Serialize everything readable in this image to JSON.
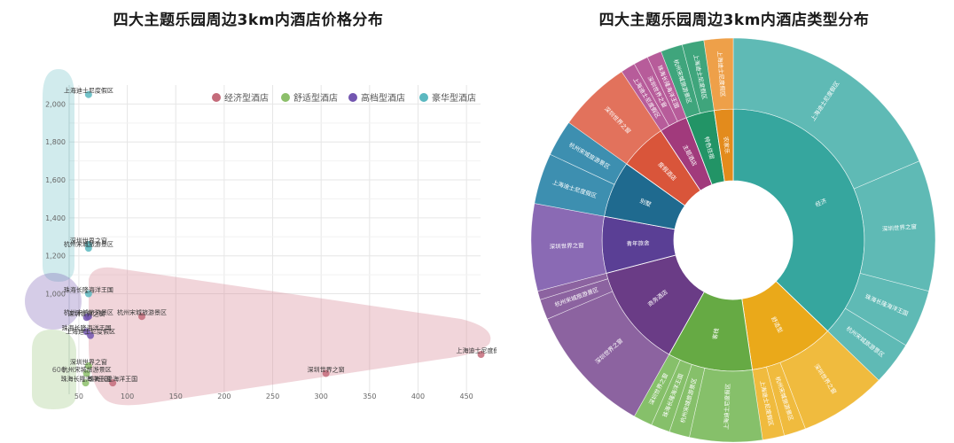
{
  "chart_data": [
    {
      "type": "scatter",
      "title": "四大主题乐园周边3km内酒店价格分布",
      "xlabel": "",
      "ylabel": "",
      "xlim": [
        40,
        470
      ],
      "ylim": [
        400,
        2100
      ],
      "x_ticks": [
        50,
        100,
        150,
        200,
        250,
        300,
        350,
        400,
        450
      ],
      "y_ticks": [
        1000,
        1200,
        1400,
        1600,
        1800,
        2000
      ],
      "y_ticks_visible_labels": [
        "1,000",
        "1,200",
        "1,400",
        "1,600",
        "1,800",
        "2,000"
      ],
      "grid": true,
      "legend_position": "top-right",
      "legend": [
        {
          "name": "经济型酒店",
          "color": "#c46b7a"
        },
        {
          "name": "舒适型酒店",
          "color": "#8cbf6a"
        },
        {
          "name": "高档型酒店",
          "color": "#7356b0"
        },
        {
          "name": "豪华型酒店",
          "color": "#5bb8c0"
        }
      ],
      "series": [
        {
          "name": "豪华型酒店",
          "color": "#5bb8c0",
          "points": [
            {
              "label": "上海迪士尼度假区",
              "x": 60,
              "y": 2050
            },
            {
              "label": "深圳世界之窗",
              "x": 60,
              "y": 1260
            },
            {
              "label": "杭州宋城旅游景区",
              "x": 60,
              "y": 1240
            },
            {
              "label": "珠海长隆海洋王国",
              "x": 60,
              "y": 1000
            }
          ]
        },
        {
          "name": "高档型酒店",
          "color": "#7356b0",
          "points": [
            {
              "label": "杭州宋城旅游景区",
              "x": 60,
              "y": 880
            },
            {
              "label": "深圳世界之窗",
              "x": 58,
              "y": 875
            },
            {
              "label": "珠海长隆海洋王国",
              "x": 58,
              "y": 800
            },
            {
              "label": "上海迪士尼度假区",
              "x": 62,
              "y": 780
            }
          ]
        },
        {
          "name": "舒适型酒店",
          "color": "#8cbf6a",
          "points": [
            {
              "label": "深圳世界之窗",
              "x": 60,
              "y": 620
            },
            {
              "label": "杭州宋城旅游景区",
              "x": 58,
              "y": 580
            },
            {
              "label": "珠海长隆海洋王国",
              "x": 57,
              "y": 530
            }
          ]
        },
        {
          "name": "经济型酒店",
          "color": "#c46b7a",
          "points": [
            {
              "label": "杭州宋城旅游景区",
              "x": 115,
              "y": 880
            },
            {
              "label": "珠海长隆海洋王国",
              "x": 85,
              "y": 530
            },
            {
              "label": "深圳世界之窗",
              "x": 305,
              "y": 580
            },
            {
              "label": "上海迪士尼度假区",
              "x": 465,
              "y": 680
            }
          ]
        }
      ]
    },
    {
      "type": "sunburst",
      "title": "四大主题乐园周边3km内酒店类型分布",
      "inner_ring": [
        {
          "name": "经济",
          "value": 32,
          "color": "#36a69e"
        },
        {
          "name": "舒适型",
          "value": 9,
          "color": "#eaa91a"
        },
        {
          "name": "客栈",
          "value": 9,
          "color": "#66aa44"
        },
        {
          "name": "商务酒店",
          "value": 11,
          "color": "#6a3c86"
        },
        {
          "name": "青年旅舍",
          "value": 6,
          "color": "#5a3f95"
        },
        {
          "name": "别墅",
          "value": 6,
          "color": "#1f6a8f"
        },
        {
          "name": "度假酒店",
          "value": 5,
          "color": "#d9553a"
        },
        {
          "name": "主题酒店",
          "value": 3,
          "color": "#a13a7c"
        },
        {
          "name": "特色住宿",
          "value": 3,
          "color": "#229466"
        },
        {
          "name": "农家乐",
          "value": 2,
          "color": "#e38b1c"
        }
      ],
      "outer_ring": [
        {
          "parent": "经济",
          "name": "上海迪士尼度假区",
          "value": 16,
          "color": "#5fbab5"
        },
        {
          "parent": "经济",
          "name": "深圳世界之窗",
          "value": 9,
          "color": "#5fbab5"
        },
        {
          "parent": "经济",
          "name": "珠海长隆海洋王国",
          "value": 4,
          "color": "#5fbab5"
        },
        {
          "parent": "经济",
          "name": "杭州宋城旅游景区",
          "value": 3,
          "color": "#5fbab5"
        },
        {
          "parent": "舒适型",
          "name": "深圳世界之窗",
          "value": 6,
          "color": "#f0bb3e"
        },
        {
          "parent": "舒适型",
          "name": "杭州宋城旅游景区",
          "value": 1.5,
          "color": "#f0bb3e"
        },
        {
          "parent": "舒适型",
          "name": "上海迪士尼度假区",
          "value": 1.5,
          "color": "#f0bb3e"
        },
        {
          "parent": "客栈",
          "name": "上海迪士尼度假区",
          "value": 5,
          "color": "#86c06a"
        },
        {
          "parent": "客栈",
          "name": "杭州宋城旅游景区",
          "value": 1.4,
          "color": "#86c06a"
        },
        {
          "parent": "客栈",
          "name": "珠海长隆海洋王国",
          "value": 1.3,
          "color": "#86c06a"
        },
        {
          "parent": "客栈",
          "name": "深圳世界之窗",
          "value": 1.3,
          "color": "#86c06a"
        },
        {
          "parent": "商务酒店",
          "name": "深圳世界之窗",
          "value": 9,
          "color": "#8c63a0"
        },
        {
          "parent": "商务酒店",
          "name": "杭州宋城旅游景区",
          "value": 1.4,
          "color": "#8c63a0"
        },
        {
          "parent": "商务酒店",
          "name": "",
          "value": 0.6,
          "color": "#8c63a0"
        },
        {
          "parent": "青年旅舍",
          "name": "深圳世界之窗",
          "value": 6,
          "color": "#8a6ab4"
        },
        {
          "parent": "别墅",
          "name": "上海迪士尼度假区",
          "value": 3.5,
          "color": "#3d8fb0"
        },
        {
          "parent": "别墅",
          "name": "杭州宋城旅游景区",
          "value": 2.5,
          "color": "#3d8fb0"
        },
        {
          "parent": "度假酒店",
          "name": "深圳世界之窗",
          "value": 5,
          "color": "#e2725c"
        },
        {
          "parent": "主题酒店",
          "name": "上海迪士尼度假区",
          "value": 1,
          "color": "#b75c9a"
        },
        {
          "parent": "主题酒店",
          "name": "深圳世界之窗",
          "value": 1,
          "color": "#b75c9a"
        },
        {
          "parent": "主题酒店",
          "name": "珠海长隆海洋王国",
          "value": 1,
          "color": "#b75c9a"
        },
        {
          "parent": "特色住宿",
          "name": "杭州宋城旅游景区",
          "value": 1.5,
          "color": "#3fa57c"
        },
        {
          "parent": "特色住宿",
          "name": "上海迪士尼度假区",
          "value": 1.5,
          "color": "#3fa57c"
        },
        {
          "parent": "农家乐",
          "name": "上海迪士尼度假区",
          "value": 2,
          "color": "#eea049"
        }
      ]
    }
  ],
  "left": {
    "title": "四大主题乐园周边3km内酒店价格分布",
    "legend": [
      "经济型酒店",
      "舒适型酒店",
      "高档型酒店",
      "豪华型酒店"
    ]
  },
  "right": {
    "title": "四大主题乐园周边3km内酒店类型分布"
  }
}
